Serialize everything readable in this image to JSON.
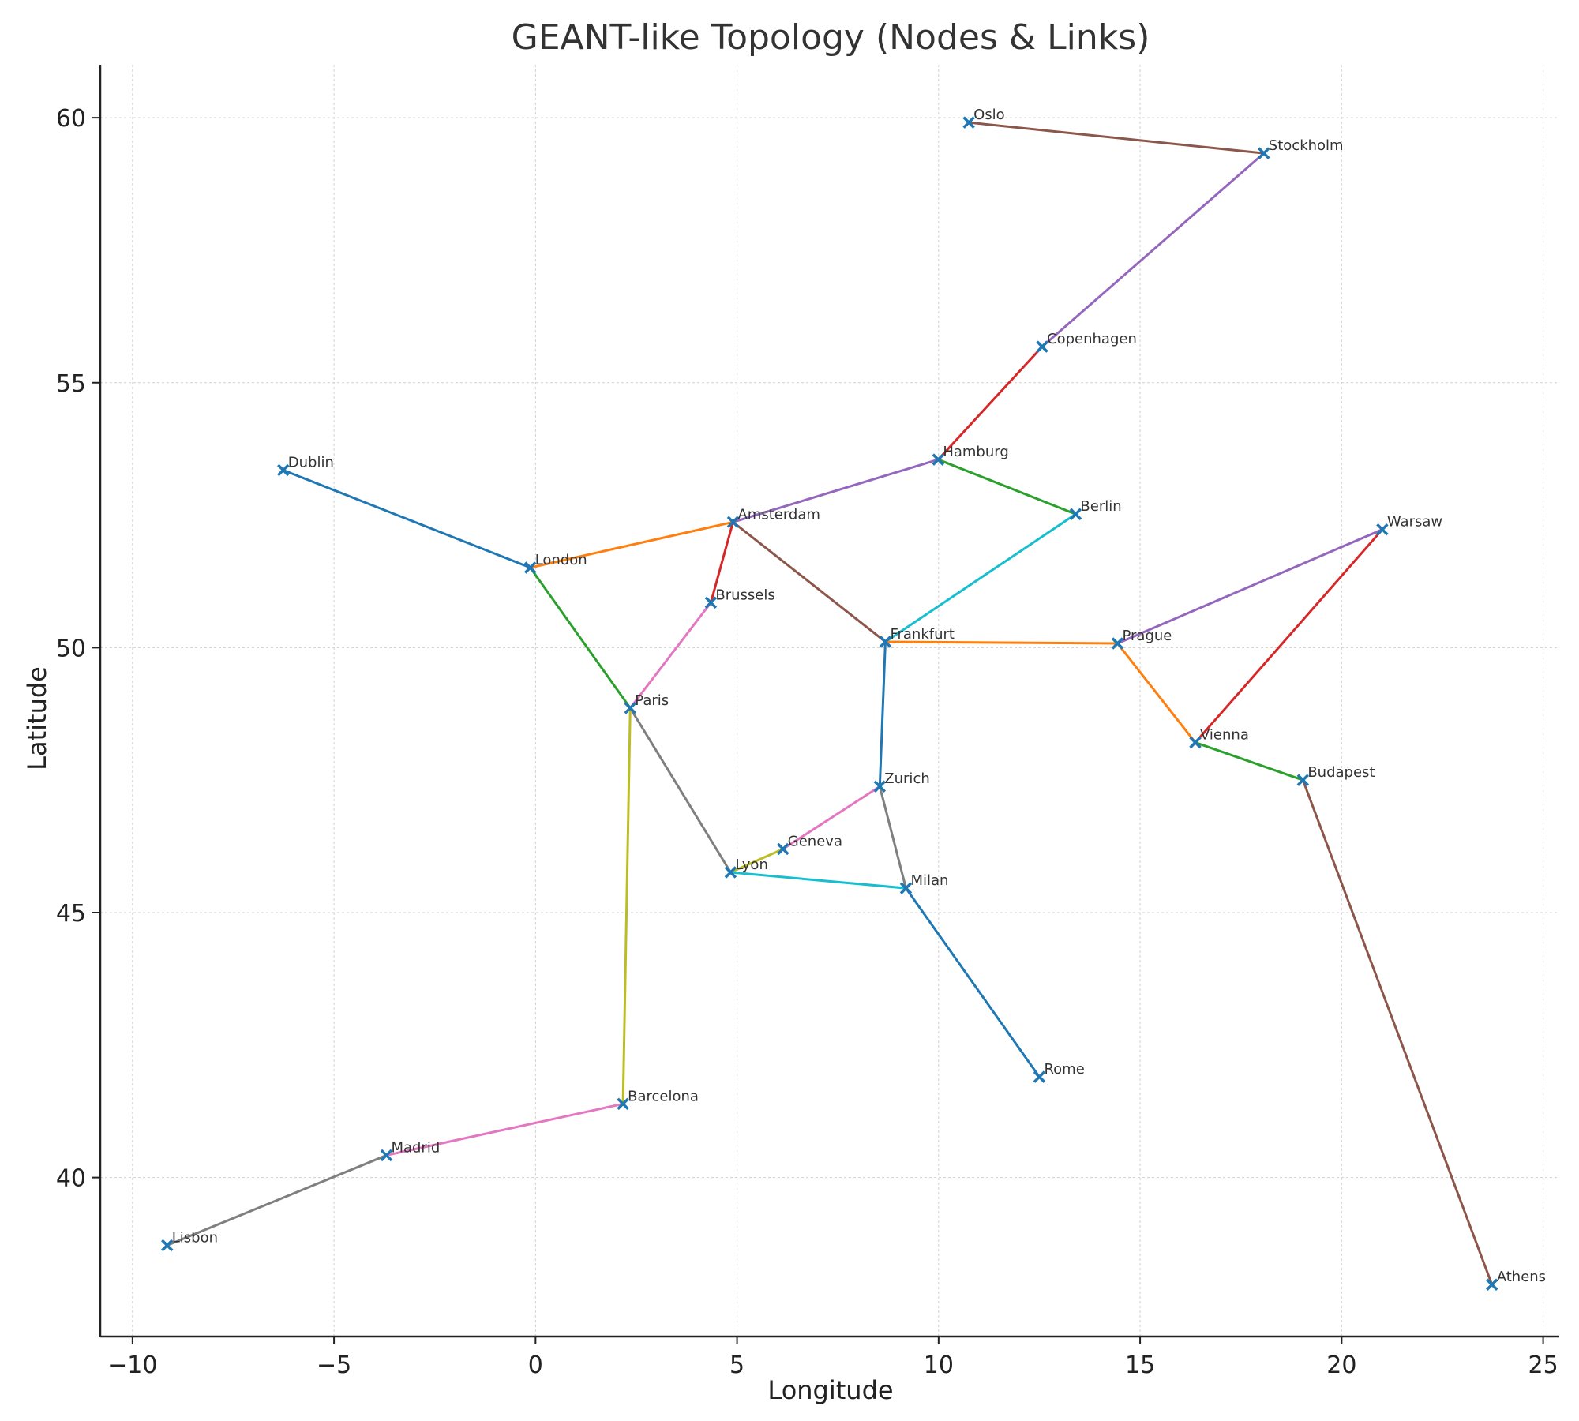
{
  "chart_data": {
    "type": "scatter",
    "title": "GEANT-like Topology (Nodes & Links)",
    "xlabel": "Longitude",
    "ylabel": "Latitude",
    "xlim": [
      -10.8,
      25.4
    ],
    "ylim": [
      37.0,
      61.0
    ],
    "xticks": [
      -10,
      -5,
      0,
      5,
      10,
      15,
      20,
      25
    ],
    "yticks": [
      40,
      45,
      50,
      55,
      60
    ],
    "xtick_labels": [
      "−10",
      "−5",
      "0",
      "5",
      "10",
      "15",
      "20",
      "25"
    ],
    "ytick_labels": [
      "40",
      "45",
      "50",
      "55",
      "60"
    ],
    "grid": true,
    "marker_color": "#1f77b4",
    "nodes": [
      {
        "name": "Oslo",
        "lon": 10.75,
        "lat": 59.91
      },
      {
        "name": "Stockholm",
        "lon": 18.07,
        "lat": 59.33
      },
      {
        "name": "Copenhagen",
        "lon": 12.57,
        "lat": 55.68
      },
      {
        "name": "Hamburg",
        "lon": 9.99,
        "lat": 53.55
      },
      {
        "name": "Berlin",
        "lon": 13.4,
        "lat": 52.52
      },
      {
        "name": "Dublin",
        "lon": -6.26,
        "lat": 53.35
      },
      {
        "name": "Amsterdam",
        "lon": 4.9,
        "lat": 52.37
      },
      {
        "name": "Warsaw",
        "lon": 21.01,
        "lat": 52.23
      },
      {
        "name": "London",
        "lon": -0.13,
        "lat": 51.51
      },
      {
        "name": "Brussels",
        "lon": 4.35,
        "lat": 50.85
      },
      {
        "name": "Frankfurt",
        "lon": 8.68,
        "lat": 50.11
      },
      {
        "name": "Prague",
        "lon": 14.44,
        "lat": 50.08
      },
      {
        "name": "Paris",
        "lon": 2.35,
        "lat": 48.86
      },
      {
        "name": "Vienna",
        "lon": 16.37,
        "lat": 48.21
      },
      {
        "name": "Budapest",
        "lon": 19.04,
        "lat": 47.5
      },
      {
        "name": "Zurich",
        "lon": 8.54,
        "lat": 47.38
      },
      {
        "name": "Geneva",
        "lon": 6.14,
        "lat": 46.2
      },
      {
        "name": "Lyon",
        "lon": 4.84,
        "lat": 45.76
      },
      {
        "name": "Milan",
        "lon": 9.19,
        "lat": 45.46
      },
      {
        "name": "Rome",
        "lon": 12.5,
        "lat": 41.9
      },
      {
        "name": "Barcelona",
        "lon": 2.17,
        "lat": 41.39
      },
      {
        "name": "Madrid",
        "lon": -3.7,
        "lat": 40.42
      },
      {
        "name": "Lisbon",
        "lon": -9.14,
        "lat": 38.72
      },
      {
        "name": "Athens",
        "lon": 23.73,
        "lat": 37.98
      }
    ],
    "links": [
      {
        "from": "Dublin",
        "to": "London",
        "color": "#1f77b4"
      },
      {
        "from": "London",
        "to": "Amsterdam",
        "color": "#ff7f0e"
      },
      {
        "from": "London",
        "to": "Paris",
        "color": "#2ca02c"
      },
      {
        "from": "Amsterdam",
        "to": "Brussels",
        "color": "#d62728"
      },
      {
        "from": "Amsterdam",
        "to": "Hamburg",
        "color": "#9467bd"
      },
      {
        "from": "Amsterdam",
        "to": "Frankfurt",
        "color": "#8c564b"
      },
      {
        "from": "Brussels",
        "to": "Paris",
        "color": "#e377c2"
      },
      {
        "from": "Paris",
        "to": "Lyon",
        "color": "#7f7f7f"
      },
      {
        "from": "Paris",
        "to": "Barcelona",
        "color": "#bcbd22"
      },
      {
        "from": "Frankfurt",
        "to": "Berlin",
        "color": "#17becf"
      },
      {
        "from": "Frankfurt",
        "to": "Zurich",
        "color": "#1f77b4"
      },
      {
        "from": "Frankfurt",
        "to": "Prague",
        "color": "#ff7f0e"
      },
      {
        "from": "Hamburg",
        "to": "Berlin",
        "color": "#2ca02c"
      },
      {
        "from": "Hamburg",
        "to": "Copenhagen",
        "color": "#d62728"
      },
      {
        "from": "Copenhagen",
        "to": "Stockholm",
        "color": "#9467bd"
      },
      {
        "from": "Stockholm",
        "to": "Oslo",
        "color": "#8c564b"
      },
      {
        "from": "Zurich",
        "to": "Geneva",
        "color": "#e377c2"
      },
      {
        "from": "Zurich",
        "to": "Milan",
        "color": "#7f7f7f"
      },
      {
        "from": "Geneva",
        "to": "Lyon",
        "color": "#bcbd22"
      },
      {
        "from": "Lyon",
        "to": "Milan",
        "color": "#17becf"
      },
      {
        "from": "Milan",
        "to": "Rome",
        "color": "#1f77b4"
      },
      {
        "from": "Prague",
        "to": "Vienna",
        "color": "#ff7f0e"
      },
      {
        "from": "Vienna",
        "to": "Budapest",
        "color": "#2ca02c"
      },
      {
        "from": "Vienna",
        "to": "Warsaw",
        "color": "#d62728"
      },
      {
        "from": "Prague",
        "to": "Warsaw",
        "color": "#9467bd"
      },
      {
        "from": "Budapest",
        "to": "Athens",
        "color": "#8c564b"
      },
      {
        "from": "Barcelona",
        "to": "Madrid",
        "color": "#e377c2"
      },
      {
        "from": "Madrid",
        "to": "Lisbon",
        "color": "#7f7f7f"
      }
    ]
  }
}
